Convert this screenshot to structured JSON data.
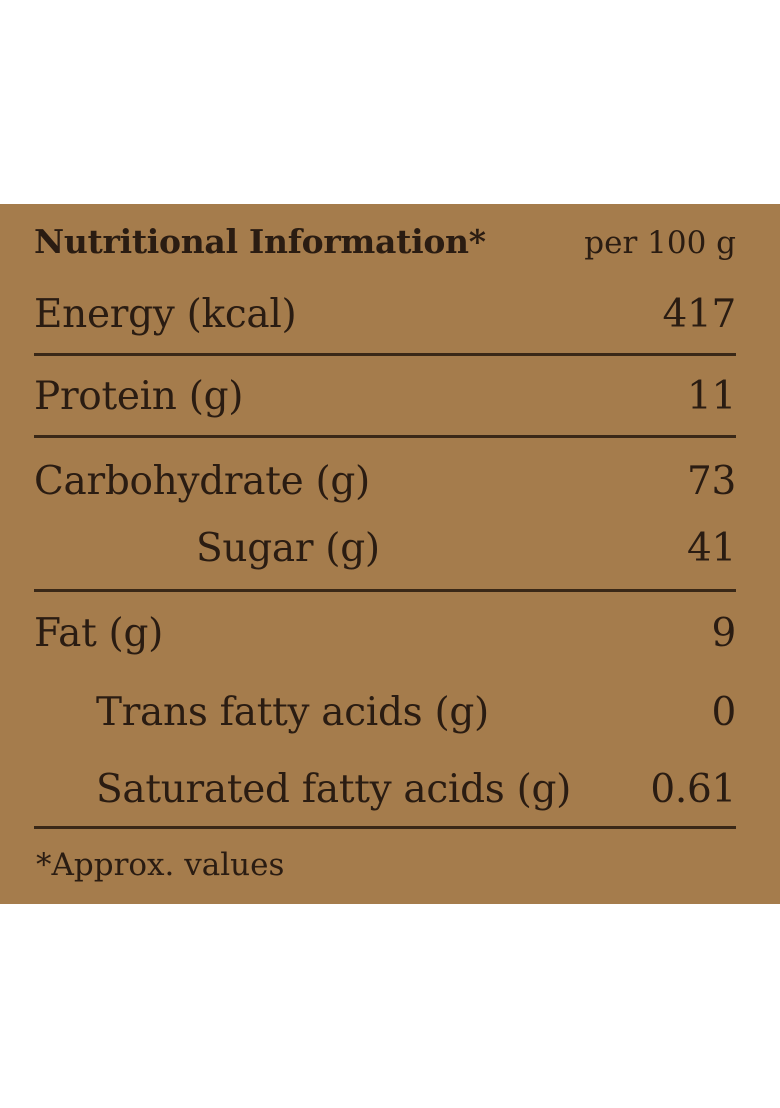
{
  "table": {
    "heading": "Nutritional Information*",
    "per_unit": "per 100 g",
    "rows": [
      {
        "label": "Energy (kcal)",
        "value": "417"
      },
      {
        "label": "Protein (g)",
        "value": "11"
      },
      {
        "label": "Carbohydrate (g)",
        "value": "73"
      },
      {
        "label": "Sugar (g)",
        "value": "41"
      },
      {
        "label": "Fat (g)",
        "value": "9"
      },
      {
        "label": "Trans fatty acids (g)",
        "value": "0"
      },
      {
        "label": "Saturated fatty acids (g)",
        "value": "0.61"
      }
    ],
    "footnote": "*Approx. values"
  },
  "colors": {
    "panel_background": "#a57c4c",
    "text": "#2a1c12",
    "rule": "#3a2817",
    "page_background": "#ffffff"
  }
}
